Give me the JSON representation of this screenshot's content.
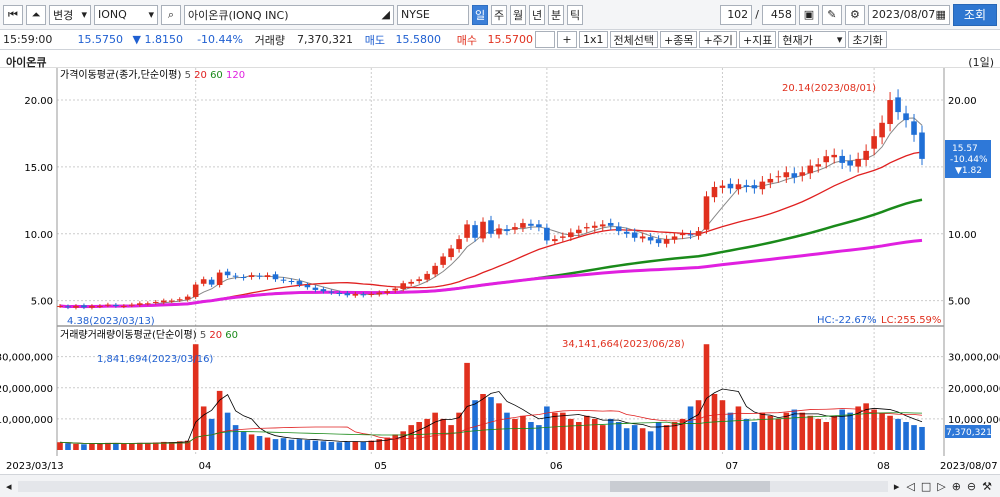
{
  "toolbar": {
    "mode": "변경",
    "ticker": "IONQ",
    "name": "아이온큐(IONQ INC)",
    "exchange": "NYSE",
    "periods": [
      "일",
      "주",
      "월",
      "년",
      "분",
      "틱"
    ],
    "page_current": "102",
    "page_sep": "/",
    "page_total": "458",
    "date": "2023/08/07",
    "lookup": "조회"
  },
  "quote": {
    "time": "15:59:00",
    "price": "15.5750",
    "change": "▼ 1.8150",
    "rate": "-10.44%",
    "volume_label": "거래량",
    "volume": "7,370,321",
    "ask_label": "매도",
    "ask": "15.5800",
    "bid_label": "매수",
    "bid": "15.5700",
    "plus": "+",
    "ratio": "1x1",
    "select_all": "전체선택",
    "add_symbol": "+종목",
    "add_period": "+주기",
    "add_indicator": "+지표",
    "price_type": "현재가",
    "reset": "초기화"
  },
  "panel": {
    "title": "아이온큐",
    "period": "(1일)"
  },
  "legends": {
    "price": "가격이동평균(종가,단순이평)",
    "price_periods": [
      "5",
      "20",
      "60",
      "120"
    ],
    "vol_prefix": "거래량",
    "vol": "거래량이동평균(단순이평)",
    "vol_periods": [
      "5",
      "20",
      "60"
    ]
  },
  "annotations": {
    "high": "20.14(2023/08/01)",
    "low": "4.38(2023/03/13)",
    "vol_high": "34,141,664(2023/06/28)",
    "vol_low": "1,841,694(2023/03/16)",
    "hc": "HC:-22.67%",
    "lc": "LC:255.59%",
    "last_price": "15.57",
    "last_rate": "-10.44%",
    "last_change": "▼1.82",
    "last_volume": "7,370,321"
  },
  "colors": {
    "up": "#e0301e",
    "down": "#1f6fd6",
    "ma5": "#888888",
    "ma20": "#e02020",
    "ma60": "#1a8a1a",
    "ma120": "#e020e0"
  },
  "chart_data": [
    {
      "type": "candlestick",
      "ylim": [
        4,
        21.5
      ],
      "yticks": [
        5,
        10,
        15,
        20
      ],
      "x_labels": [
        "04",
        "05",
        "06",
        "07",
        "08"
      ],
      "x_start": "2023/03/13",
      "x_end": "2023/08/07",
      "close": [
        4.6,
        4.5,
        4.6,
        4.5,
        4.6,
        4.6,
        4.7,
        4.6,
        4.6,
        4.7,
        4.8,
        4.8,
        4.9,
        5.0,
        5.0,
        5.1,
        5.3,
        6.2,
        6.6,
        6.2,
        7.1,
        6.9,
        6.8,
        6.7,
        6.9,
        6.8,
        6.9,
        6.6,
        6.5,
        6.4,
        6.2,
        6.0,
        5.8,
        5.7,
        5.6,
        5.5,
        5.4,
        5.5,
        5.4,
        5.5,
        5.6,
        5.7,
        5.9,
        6.3,
        6.4,
        6.6,
        7.0,
        7.6,
        8.3,
        8.9,
        9.6,
        10.7,
        9.7,
        10.9,
        10.0,
        10.4,
        10.2,
        10.5,
        10.8,
        10.6,
        10.5,
        9.5,
        9.6,
        9.8,
        10.1,
        10.3,
        10.5,
        10.6,
        10.7,
        10.6,
        10.2,
        10.0,
        9.7,
        9.8,
        9.5,
        9.3,
        9.6,
        9.8,
        10.0,
        9.9,
        10.2,
        12.8,
        13.5,
        13.6,
        13.4,
        13.7,
        13.5,
        13.4,
        13.9,
        14.1,
        14.3,
        14.6,
        14.2,
        14.6,
        15.1,
        15.2,
        15.8,
        15.9,
        15.3,
        15.1,
        15.6,
        16.2,
        17.3,
        18.3,
        20.0,
        19.1,
        18.5,
        17.4,
        15.6
      ],
      "series_ma": [
        "5",
        "20",
        "60",
        "120"
      ]
    },
    {
      "type": "bar",
      "name": "volume",
      "ylim": [
        0,
        36000000
      ],
      "yticks": [
        10000000,
        20000000,
        30000000
      ],
      "values": [
        2.5,
        2.2,
        2.0,
        1.84,
        2.1,
        2.0,
        2.3,
        2.2,
        2.0,
        2.1,
        2.3,
        2.2,
        2.4,
        2.6,
        2.5,
        2.8,
        3.0,
        34,
        14,
        10,
        19,
        12,
        8,
        6,
        5,
        4.5,
        4,
        3.5,
        3.8,
        3.3,
        3.5,
        3.2,
        3,
        2.8,
        2.6,
        2.5,
        2.7,
        2.8,
        2.6,
        3,
        3.5,
        4,
        5,
        6,
        8,
        9,
        10,
        12,
        10,
        8,
        12,
        28,
        16,
        18,
        17,
        15,
        12,
        10,
        11,
        9,
        8,
        14,
        12,
        12,
        10,
        9,
        11,
        10,
        8,
        10,
        9,
        7,
        8,
        7,
        6,
        9,
        8,
        9,
        10,
        14,
        16,
        34,
        18,
        16,
        12,
        14,
        10,
        9,
        12,
        11,
        10,
        12,
        13,
        12,
        11,
        10,
        9,
        11,
        13,
        12,
        14,
        15,
        13,
        12,
        11,
        10,
        9,
        8,
        7.4
      ],
      "unit": "millions"
    }
  ]
}
